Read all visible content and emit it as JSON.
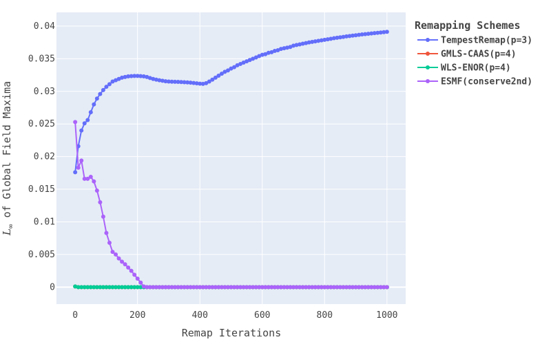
{
  "chart_data": {
    "type": "line",
    "title": "",
    "xlabel": "Remap Iterations",
    "ylabel_prefix": "L",
    "ylabel_subscript": "∞",
    "ylabel_suffix": " of Global Field Maxima",
    "xlim": [
      -60,
      1060
    ],
    "ylim": [
      -0.0026,
      0.0421
    ],
    "xticks": [
      0,
      200,
      400,
      600,
      800,
      1000
    ],
    "xtick_labels": [
      "0",
      "200",
      "400",
      "600",
      "800",
      "1000"
    ],
    "yticks": [
      0,
      0.005,
      0.01,
      0.015,
      0.02,
      0.025,
      0.03,
      0.035,
      0.04
    ],
    "ytick_labels": [
      "0",
      "0.005",
      "0.01",
      "0.015",
      "0.02",
      "0.025",
      "0.03",
      "0.035",
      "0.04"
    ],
    "grid": true,
    "legend_title": "Remapping Schemes",
    "legend_position": "right",
    "series": [
      {
        "name": "TempestRemap(p=3)",
        "color": "#636efa",
        "x": [
          0,
          10,
          20,
          30,
          40,
          50,
          60,
          70,
          80,
          90,
          100,
          110,
          120,
          130,
          140,
          150,
          160,
          170,
          180,
          190,
          200,
          210,
          220,
          230,
          240,
          250,
          260,
          270,
          280,
          290,
          300,
          310,
          320,
          330,
          340,
          350,
          360,
          370,
          380,
          390,
          400,
          410,
          420,
          430,
          440,
          450,
          460,
          470,
          480,
          490,
          500,
          510,
          520,
          530,
          540,
          550,
          560,
          570,
          580,
          590,
          600,
          610,
          620,
          630,
          640,
          650,
          660,
          670,
          680,
          690,
          700,
          710,
          720,
          730,
          740,
          750,
          760,
          770,
          780,
          790,
          800,
          810,
          820,
          830,
          840,
          850,
          860,
          870,
          880,
          890,
          900,
          910,
          920,
          930,
          940,
          950,
          960,
          970,
          980,
          990,
          1000
        ],
        "y": [
          0.0176,
          0.0216,
          0.024,
          0.0251,
          0.0256,
          0.0268,
          0.028,
          0.0289,
          0.0296,
          0.0302,
          0.0307,
          0.0311,
          0.0315,
          0.0317,
          0.0319,
          0.0321,
          0.0322,
          0.0323,
          0.03233,
          0.03236,
          0.03236,
          0.03233,
          0.0323,
          0.0322,
          0.03205,
          0.0319,
          0.0318,
          0.0317,
          0.03162,
          0.03155,
          0.0315,
          0.03148,
          0.03147,
          0.03145,
          0.03143,
          0.0314,
          0.03137,
          0.03133,
          0.03128,
          0.03123,
          0.03118,
          0.03115,
          0.03125,
          0.0315,
          0.0318,
          0.0321,
          0.0324,
          0.0327,
          0.033,
          0.0332,
          0.0335,
          0.0337,
          0.034,
          0.0342,
          0.0344,
          0.0346,
          0.0348,
          0.035,
          0.0352,
          0.0354,
          0.0356,
          0.0357,
          0.0359,
          0.036,
          0.0362,
          0.0363,
          0.0365,
          0.0366,
          0.0367,
          0.0368,
          0.037,
          0.0371,
          0.0372,
          0.0373,
          0.0374,
          0.0375,
          0.03758,
          0.03766,
          0.03774,
          0.03782,
          0.0379,
          0.03798,
          0.03806,
          0.03814,
          0.03821,
          0.03828,
          0.03835,
          0.03842,
          0.03848,
          0.03854,
          0.0386,
          0.03866,
          0.03872,
          0.03877,
          0.03882,
          0.03887,
          0.03892,
          0.03897,
          0.03902,
          0.03907,
          0.03912
        ]
      },
      {
        "name": "GMLS-CAAS(p=4)",
        "color": "#ef553b",
        "x": [
          0,
          10,
          20,
          30,
          40,
          50,
          60,
          70,
          80,
          90,
          100,
          110,
          120,
          130,
          140,
          150,
          160,
          170,
          180,
          190,
          200,
          210,
          220,
          230,
          240,
          250,
          260,
          270,
          280,
          290,
          300,
          310,
          320,
          330,
          340,
          350,
          360,
          370,
          380,
          390,
          400,
          410,
          420,
          430,
          440,
          450,
          460,
          470,
          480,
          490,
          500,
          510,
          520,
          530,
          540,
          550,
          560,
          570,
          580,
          590,
          600,
          610,
          620,
          630,
          640,
          650,
          660,
          670,
          680,
          690,
          700,
          710,
          720,
          730,
          740,
          750,
          760,
          770,
          780,
          790,
          800,
          810,
          820,
          830,
          840,
          850,
          860,
          870,
          880,
          890,
          900,
          910,
          920,
          930,
          940,
          950,
          960,
          970,
          980,
          990,
          1000
        ],
        "y": [
          0.0001,
          0,
          0,
          0,
          0,
          0,
          0,
          0,
          0,
          0,
          0,
          0,
          0,
          0,
          0,
          0,
          0,
          0,
          0,
          0,
          0,
          0,
          0,
          0,
          0,
          0,
          0,
          0,
          0,
          0,
          0,
          0,
          0,
          0,
          0,
          0,
          0,
          0,
          0,
          0,
          0,
          0,
          0,
          0,
          0,
          0,
          0,
          0,
          0,
          0,
          0,
          0,
          0,
          0,
          0,
          0,
          0,
          0,
          0,
          0,
          0,
          0,
          0,
          0,
          0,
          0,
          0,
          0,
          0,
          0,
          0,
          0,
          0,
          0,
          0,
          0,
          0,
          0,
          0,
          0,
          0,
          0,
          0,
          0,
          0,
          0,
          0,
          0,
          0,
          0,
          0,
          0,
          0,
          0,
          0,
          0,
          0,
          0,
          0,
          0,
          0
        ]
      },
      {
        "name": "WLS-ENOR(p=4)",
        "color": "#00cc96",
        "x": [
          0,
          10,
          20,
          30,
          40,
          50,
          60,
          70,
          80,
          90,
          100,
          110,
          120,
          130,
          140,
          150,
          160,
          170,
          180,
          190,
          200,
          210,
          220,
          230,
          240,
          250,
          260,
          270,
          280,
          290,
          300,
          310,
          320,
          330,
          340,
          350,
          360,
          370,
          380,
          390,
          400,
          410,
          420,
          430,
          440,
          450,
          460,
          470,
          480,
          490,
          500,
          510,
          520,
          530,
          540,
          550,
          560,
          570,
          580,
          590,
          600,
          610,
          620,
          630,
          640,
          650,
          660,
          670,
          680,
          690,
          700,
          710,
          720,
          730,
          740,
          750,
          760,
          770,
          780,
          790,
          800,
          810,
          820,
          830,
          840,
          850,
          860,
          870,
          880,
          890,
          900,
          910,
          920,
          930,
          940,
          950,
          960,
          970,
          980,
          990,
          1000
        ],
        "y": [
          0.0001,
          0,
          0,
          0,
          0,
          0,
          0,
          0,
          0,
          0,
          0,
          0,
          0,
          0,
          0,
          0,
          0,
          0,
          0,
          0,
          0,
          0,
          0,
          0,
          0,
          0,
          0,
          0,
          0,
          0,
          0,
          0,
          0,
          0,
          0,
          0,
          0,
          0,
          0,
          0,
          0,
          0,
          0,
          0,
          0,
          0,
          0,
          0,
          0,
          0,
          0,
          0,
          0,
          0,
          0,
          0,
          0,
          0,
          0,
          0,
          0,
          0,
          0,
          0,
          0,
          0,
          0,
          0,
          0,
          0,
          0,
          0,
          0,
          0,
          0,
          0,
          0,
          0,
          0,
          0,
          0,
          0,
          0,
          0,
          0,
          0,
          0,
          0,
          0,
          0,
          0,
          0,
          0,
          0,
          0,
          0,
          0,
          0,
          0,
          0,
          0
        ]
      },
      {
        "name": "ESMF(conserve2nd)",
        "color": "#ab63fa",
        "x": [
          0,
          10,
          20,
          30,
          40,
          50,
          60,
          70,
          80,
          90,
          100,
          110,
          120,
          130,
          140,
          150,
          160,
          170,
          180,
          190,
          200,
          210,
          220,
          230,
          240,
          250,
          260,
          270,
          280,
          290,
          300,
          310,
          320,
          330,
          340,
          350,
          360,
          370,
          380,
          390,
          400,
          410,
          420,
          430,
          440,
          450,
          460,
          470,
          480,
          490,
          500,
          510,
          520,
          530,
          540,
          550,
          560,
          570,
          580,
          590,
          600,
          610,
          620,
          630,
          640,
          650,
          660,
          670,
          680,
          690,
          700,
          710,
          720,
          730,
          740,
          750,
          760,
          770,
          780,
          790,
          800,
          810,
          820,
          830,
          840,
          850,
          860,
          870,
          880,
          890,
          900,
          910,
          920,
          930,
          940,
          950,
          960,
          970,
          980,
          990,
          1000
        ],
        "y": [
          0.0253,
          0.0183,
          0.0194,
          0.0166,
          0.0166,
          0.0169,
          0.0162,
          0.0148,
          0.013,
          0.0108,
          0.0083,
          0.0068,
          0.0054,
          0.005,
          0.0044,
          0.0039,
          0.0035,
          0.003,
          0.0025,
          0.0019,
          0.0013,
          0.0007,
          0.0001,
          0,
          0,
          0,
          0,
          0,
          0,
          0,
          0,
          0,
          0,
          0,
          0,
          0,
          0,
          0,
          0,
          0,
          0,
          0,
          0,
          0,
          0,
          0,
          0,
          0,
          0,
          0,
          0,
          0,
          0,
          0,
          0,
          0,
          0,
          0,
          0,
          0,
          0,
          0,
          0,
          0,
          0,
          0,
          0,
          0,
          0,
          0,
          0,
          0,
          0,
          0,
          0,
          0,
          0,
          0,
          0,
          0,
          0,
          0,
          0,
          0,
          0,
          0,
          0,
          0,
          0,
          0,
          0,
          0,
          0,
          0,
          0,
          0,
          0,
          0,
          0,
          0,
          0
        ]
      }
    ]
  }
}
